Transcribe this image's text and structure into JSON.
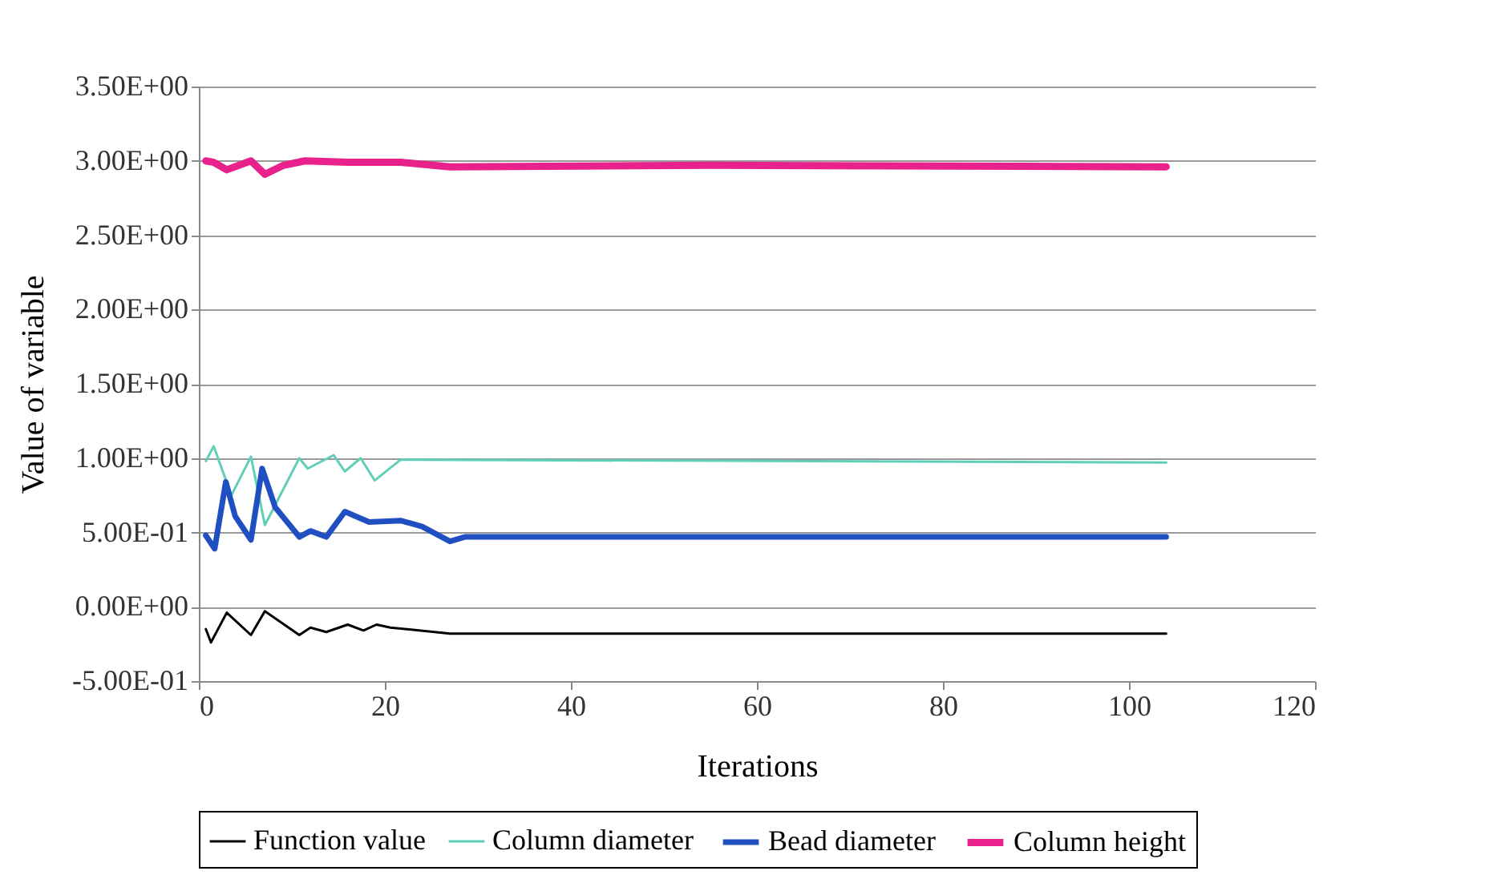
{
  "chart_data": {
    "type": "line",
    "xlabel": "Iterations",
    "ylabel": "Value of variable",
    "xlim": [
      0,
      120
    ],
    "xticks": [
      0,
      20,
      40,
      60,
      80,
      100,
      120
    ],
    "ylim": [
      -0.5,
      3.5
    ],
    "yticks": [
      {
        "value": -0.5,
        "label": "-5.00E-01"
      },
      {
        "value": 0,
        "label": "0.00E+00"
      },
      {
        "value": 0.5,
        "label": "5.00E-01"
      },
      {
        "value": 1,
        "label": "1.00E+00"
      },
      {
        "value": 1.5,
        "label": "1.50E+00"
      },
      {
        "value": 2,
        "label": "2.00E+00"
      },
      {
        "value": 2.5,
        "label": "2.50E+00"
      },
      {
        "value": 3,
        "label": "3.00E+00"
      },
      {
        "value": 3.5,
        "label": "3.50E+00"
      }
    ],
    "grid": "y",
    "legend": "bottom",
    "marker": "none",
    "line_style": "solid",
    "series": [
      {
        "name": "Function value",
        "color": "#000000",
        "x": [
          0.75,
          1.3,
          3,
          5.6,
          7.1,
          10.8,
          12,
          13.7,
          16,
          17.7,
          19.1,
          20.6,
          27,
          104
        ],
        "values": [
          -0.15,
          -0.24,
          -0.04,
          -0.19,
          -0.03,
          -0.19,
          -0.14,
          -0.17,
          -0.12,
          -0.16,
          -0.12,
          -0.14,
          -0.18,
          -0.18
        ]
      },
      {
        "name": "Column diameter",
        "color": "#5fcfb8",
        "x": [
          0.75,
          1.6,
          3.5,
          5.6,
          7.1,
          10.8,
          11.7,
          14.5,
          15.7,
          17.4,
          18.9,
          21.7,
          104
        ],
        "values": [
          0.98,
          1.08,
          0.75,
          1.01,
          0.55,
          1.0,
          0.93,
          1.02,
          0.91,
          1.0,
          0.85,
          0.99,
          0.97
        ]
      },
      {
        "name": "Bead diameter",
        "color": "#1f4fc0",
        "x": [
          0.75,
          1.7,
          2.9,
          3.9,
          5.6,
          6.8,
          8.2,
          10.8,
          12,
          13.7,
          15.7,
          18.3,
          21.7,
          24,
          27,
          28.6,
          104
        ],
        "values": [
          0.48,
          0.39,
          0.84,
          0.61,
          0.45,
          0.93,
          0.67,
          0.47,
          0.51,
          0.47,
          0.64,
          0.57,
          0.58,
          0.54,
          0.44,
          0.47,
          0.47
        ]
      },
      {
        "name": "Column height",
        "color": "#e8218c",
        "x": [
          0.75,
          1.6,
          3,
          5.6,
          7.1,
          9.1,
          11.4,
          16,
          21.7,
          27,
          55,
          104
        ],
        "values": [
          3.0,
          2.99,
          2.94,
          3.0,
          2.91,
          2.97,
          3.0,
          2.99,
          2.99,
          2.96,
          2.97,
          2.96
        ]
      }
    ]
  }
}
